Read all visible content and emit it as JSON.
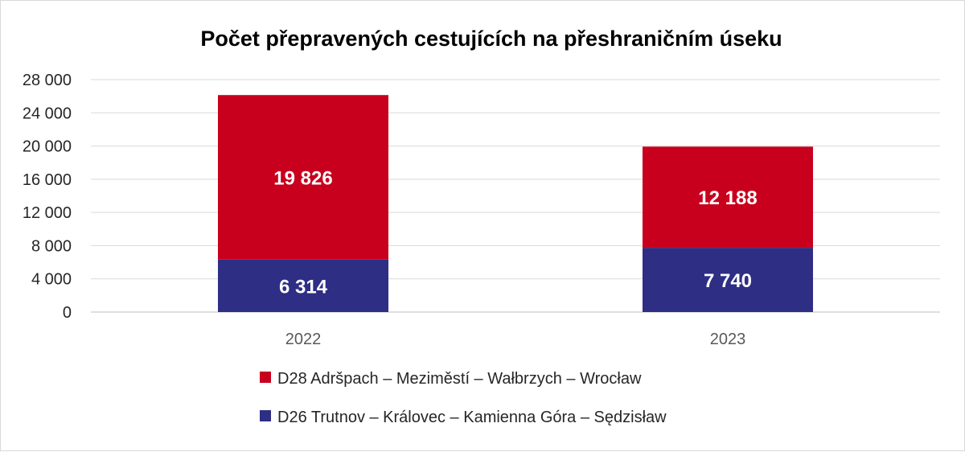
{
  "chart_data": {
    "type": "bar",
    "stacked": true,
    "title": "Počet přepravených cestujících na přeshraničním úseku",
    "xlabel": "",
    "ylabel": "",
    "categories": [
      "2022",
      "2023"
    ],
    "ylim": [
      0,
      28000
    ],
    "yticks": [
      0,
      4000,
      8000,
      12000,
      16000,
      20000,
      24000,
      28000
    ],
    "ytick_labels": [
      "0",
      "4 000",
      "8 000",
      "12 000",
      "16 000",
      "20 000",
      "24 000",
      "28 000"
    ],
    "grid": true,
    "legend_position": "bottom",
    "series": [
      {
        "name": "D26 Trutnov – Královec – Kamienna Góra – Sędzisław",
        "values": [
          6314,
          7740
        ],
        "labels": [
          "6 314",
          "7 740"
        ],
        "color": "#2e2e85"
      },
      {
        "name": "D28 Adršpach – Meziměstí – Wałbrzych – Wrocław",
        "values": [
          19826,
          12188
        ],
        "labels": [
          "19 826",
          "12 188"
        ],
        "color": "#c8001e"
      }
    ],
    "legend_order": [
      1,
      0
    ]
  }
}
